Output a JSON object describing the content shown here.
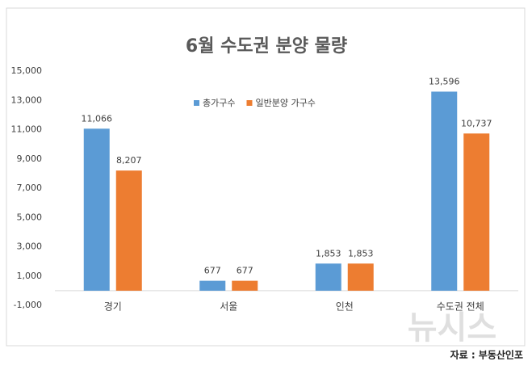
{
  "chart_data": {
    "type": "bar",
    "title": "6월 수도권 분양 물량",
    "categories": [
      "경기",
      "서울",
      "인천",
      "수도권 전체"
    ],
    "series": [
      {
        "name": "총가구수",
        "color": "#5b9bd5",
        "values": [
          11066,
          677,
          1853,
          13596
        ],
        "value_labels": [
          "11,066",
          "677",
          "1,853",
          "13,596"
        ]
      },
      {
        "name": "일반분양 가구수",
        "color": "#ed7d31",
        "values": [
          8207,
          677,
          1853,
          10737
        ],
        "value_labels": [
          "8,207",
          "677",
          "1,853",
          "10,737"
        ]
      }
    ],
    "ylim": [
      -1000,
      15000
    ],
    "yticks": [
      {
        "value": -1000,
        "label": "-1,000"
      },
      {
        "value": 1000,
        "label": "1,000"
      },
      {
        "value": 3000,
        "label": "3,000"
      },
      {
        "value": 5000,
        "label": "5,000"
      },
      {
        "value": 7000,
        "label": "7,000"
      },
      {
        "value": 9000,
        "label": "9,000"
      },
      {
        "value": 11000,
        "label": "11,000"
      },
      {
        "value": 13000,
        "label": "13,000"
      },
      {
        "value": 15000,
        "label": "15,000"
      }
    ],
    "grid": false,
    "legend": "top",
    "source": "자료 : 부동산인포",
    "watermark": "뉴시스"
  }
}
